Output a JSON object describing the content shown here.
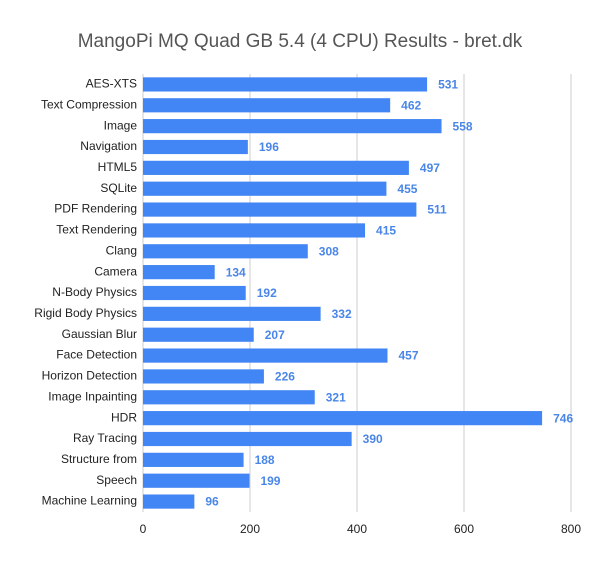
{
  "chart_data": {
    "type": "bar",
    "title": "MangoPi MQ Quad GB 5.4 (4 CPU) Results - bret.dk",
    "categories": [
      "AES-XTS",
      "Text Compression",
      "Image",
      "Navigation",
      "HTML5",
      "SQLite",
      "PDF Rendering",
      "Text Rendering",
      "Clang",
      "Camera",
      "N-Body Physics",
      "Rigid Body Physics",
      "Gaussian Blur",
      "Face Detection",
      "Horizon Detection",
      "Image Inpainting",
      "HDR",
      "Ray Tracing",
      "Structure from",
      "Speech",
      "Machine Learning"
    ],
    "values": [
      531,
      462,
      558,
      196,
      497,
      455,
      511,
      415,
      308,
      134,
      192,
      332,
      207,
      457,
      226,
      321,
      746,
      390,
      188,
      199,
      96
    ],
    "color": "#4285f4",
    "label_color": "#4a86e8",
    "xlim": [
      0,
      800
    ],
    "xticks": [
      0,
      200,
      400,
      600,
      800
    ],
    "grid": true
  }
}
